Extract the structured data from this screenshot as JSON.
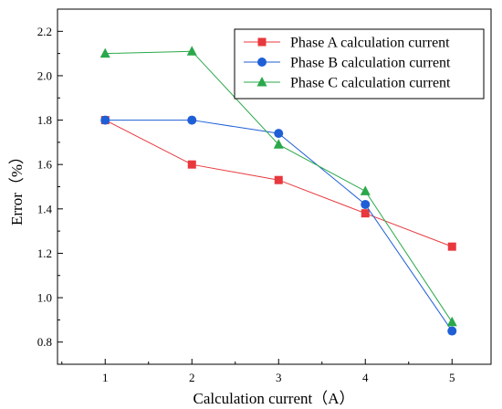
{
  "chart_data": {
    "type": "line",
    "xlabel": "Calculation current（A）",
    "ylabel": "Error（%）",
    "x": [
      1,
      2,
      3,
      4,
      5
    ],
    "xticks": [
      "1",
      "2",
      "3",
      "4",
      "5"
    ],
    "yticks": [
      "0.8",
      "1.0",
      "1.2",
      "1.4",
      "1.6",
      "1.8",
      "2.0",
      "2.2"
    ],
    "xlim": [
      0.45,
      5.45
    ],
    "ylim": [
      0.7,
      2.3
    ],
    "grid": false,
    "legend_position": "top-right",
    "series": [
      {
        "name": "Phase A calculation current",
        "color": "#e8383d",
        "marker": "square",
        "values": [
          1.8,
          1.6,
          1.53,
          1.38,
          1.23
        ]
      },
      {
        "name": "Phase B calculation current",
        "color": "#1f5fd6",
        "marker": "circle",
        "values": [
          1.8,
          1.8,
          1.74,
          1.42,
          0.85
        ]
      },
      {
        "name": "Phase C calculation current",
        "color": "#2aa84a",
        "marker": "triangle",
        "values": [
          2.1,
          2.11,
          1.69,
          1.48,
          0.89
        ]
      }
    ]
  }
}
